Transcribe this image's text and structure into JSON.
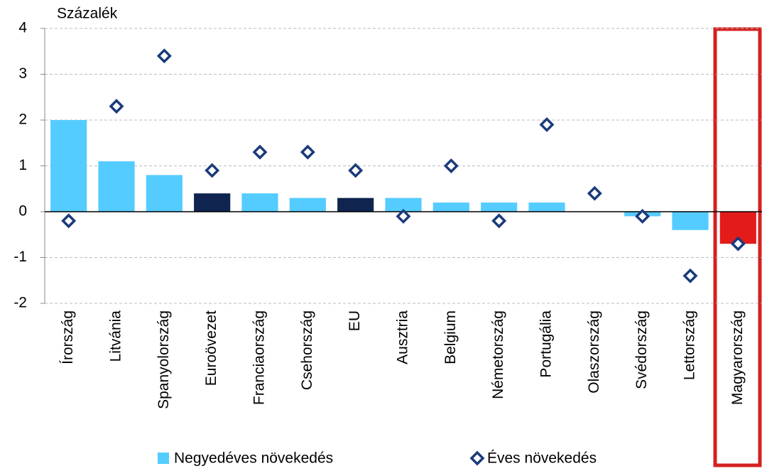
{
  "chart_data": {
    "type": "bar",
    "ylabel": "Százalék",
    "categories": [
      "Írország",
      "Litvánia",
      "Spanyolország",
      "Euroövezet",
      "Franciaország",
      "Csehország",
      "EU",
      "Ausztria",
      "Belgium",
      "Németország",
      "Portugália",
      "Olaszország",
      "Svédország",
      "Lettország",
      "Magyarország"
    ],
    "series": [
      {
        "name": "Negyedéves növekedés",
        "type": "bar",
        "color": "#55ccff",
        "colors": [
          "#55ccff",
          "#55ccff",
          "#55ccff",
          "#0f2550",
          "#55ccff",
          "#55ccff",
          "#0f2550",
          "#55ccff",
          "#55ccff",
          "#55ccff",
          "#55ccff",
          "#55ccff",
          "#55ccff",
          "#55ccff",
          "#e31b1b"
        ],
        "values": [
          2.0,
          1.1,
          0.8,
          0.4,
          0.4,
          0.3,
          0.3,
          0.3,
          0.2,
          0.2,
          0.2,
          0.0,
          -0.1,
          -0.4,
          -0.7
        ]
      },
      {
        "name": "Éves növekedés",
        "type": "scatter",
        "color": "#1a3a7a",
        "values": [
          -0.2,
          2.3,
          3.4,
          0.9,
          1.3,
          1.3,
          0.9,
          -0.1,
          1.0,
          -0.2,
          1.9,
          0.4,
          -0.1,
          -1.4,
          -0.7
        ]
      }
    ],
    "ylim": [
      -2,
      4
    ],
    "yticks": [
      -2,
      -1,
      0,
      1,
      2,
      3,
      4
    ],
    "grid": true
  }
}
